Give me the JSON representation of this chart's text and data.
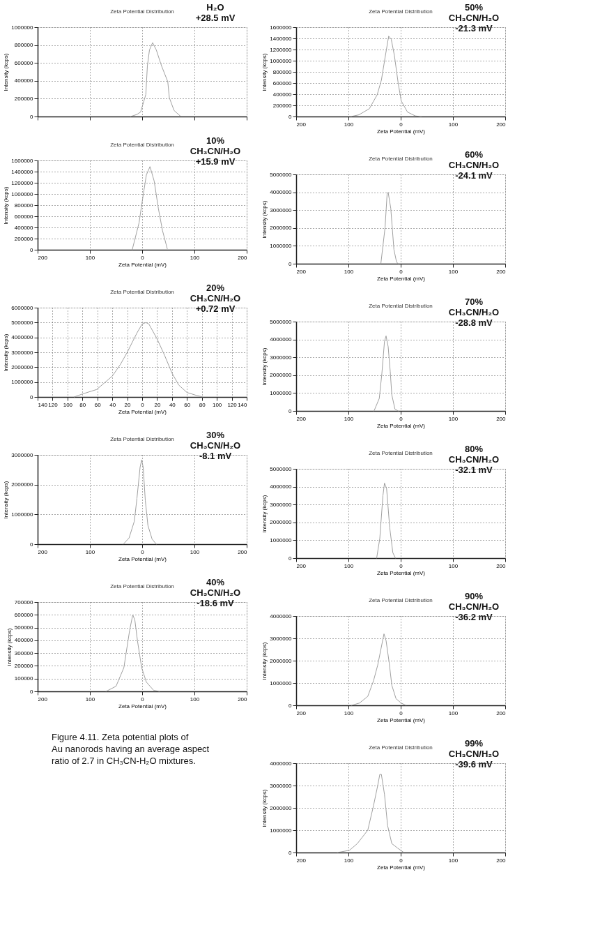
{
  "chart_data": [
    {
      "type": "line",
      "title": "Zeta Potential Distribution",
      "ylabel": "Intensity (kcps)",
      "annotations": [
        "H₂O\n+28.5 mV"
      ],
      "color": "#a0a0a0",
      "grid": true,
      "tick_labels": "y",
      "x": [
        -22,
        -10,
        -3,
        7,
        10,
        14,
        20,
        27,
        37,
        49,
        52,
        61,
        73
      ],
      "values": [
        0,
        23000,
        50000,
        246000,
        568000,
        746000,
        827000,
        746000,
        568000,
        390000,
        210000,
        68000,
        5000
      ],
      "xlim": [
        -200,
        200
      ],
      "xticks": [
        -200,
        -100,
        0,
        100,
        200
      ],
      "ylim": [
        0,
        1000000
      ],
      "yticks": [
        0,
        200000,
        400000,
        600000,
        800000,
        1000000
      ]
    },
    {
      "type": "line",
      "title": "Zeta Potential Distribution",
      "xlabel": "Zeta Potential (mV)",
      "ylabel": "Intensity (kcps)",
      "annotations": [
        "10%\nCH₃CN/H₂O\n+15.9 mV"
      ],
      "color": "#a0a0a0",
      "grid": true,
      "x": [
        -19,
        -6,
        0,
        8,
        15,
        23,
        31,
        39,
        48
      ],
      "values": [
        0,
        480000,
        860000,
        1340000,
        1490000,
        1230000,
        740000,
        340000,
        20000
      ],
      "xlim": [
        -200,
        200
      ],
      "xticks": [
        {
          "value": -200,
          "label": "200"
        },
        {
          "value": -100,
          "label": "100"
        },
        0,
        100,
        200
      ],
      "ylim": [
        0,
        1600000
      ],
      "yticks": [
        0,
        200000,
        400000,
        600000,
        800000,
        1000000,
        1200000,
        1400000,
        1600000
      ]
    },
    {
      "type": "line",
      "title": "Zeta Potential Distribution",
      "xlabel": "Zeta Potential (mV)",
      "ylabel": "Intensity (kcps)",
      "annotations": [
        "20%\nCH₃CN/H₂O\n+0.72 mV"
      ],
      "color": "#a0a0a0",
      "grid": true,
      "x": [
        -91,
        -80,
        -61,
        -40,
        -29,
        -20,
        -7,
        0,
        5,
        9,
        20,
        30,
        40,
        49,
        60,
        73,
        81
      ],
      "values": [
        0,
        200000,
        500000,
        1400000,
        2200000,
        3000000,
        4300000,
        4900000,
        5000000,
        4900000,
        3900000,
        2800000,
        1600000,
        800000,
        300000,
        100000,
        0
      ],
      "xlim": [
        -140,
        140
      ],
      "xticks": [
        {
          "value": -140,
          "label": "140"
        },
        {
          "value": -120,
          "label": "120"
        },
        {
          "value": -100,
          "label": "100"
        },
        {
          "value": -80,
          "label": "80"
        },
        {
          "value": -60,
          "label": "60"
        },
        {
          "value": -40,
          "label": "40"
        },
        {
          "value": -20,
          "label": "20"
        },
        0,
        20,
        40,
        60,
        80,
        100,
        120,
        140
      ],
      "ylim": [
        0,
        6000000
      ],
      "yticks": [
        0,
        1000000,
        2000000,
        3000000,
        4000000,
        5000000,
        6000000
      ]
    },
    {
      "type": "line",
      "title": "Zeta Potential Distribution",
      "xlabel": "Zeta Potential (mV)",
      "ylabel": "Intensity (kcps)",
      "annotations": [
        "30%\nCH₃CN/H₂O\n-8.1 mV"
      ],
      "color": "#a0a0a0",
      "grid": true,
      "x": [
        -36,
        -25,
        -15,
        -10,
        -4,
        -1,
        2,
        6,
        11,
        19,
        27
      ],
      "values": [
        0,
        210000,
        770000,
        1540000,
        2580000,
        2830000,
        2580000,
        1470000,
        630000,
        170000,
        0
      ],
      "xlim": [
        -200,
        200
      ],
      "xticks": [
        {
          "value": -200,
          "label": "200"
        },
        {
          "value": -100,
          "label": "100"
        },
        0,
        100,
        200
      ],
      "ylim": [
        0,
        3000000
      ],
      "yticks": [
        0,
        1000000,
        2000000,
        3000000
      ]
    },
    {
      "type": "line",
      "title": "Zeta Potential Distribution",
      "xlabel": "Zeta Potential (mV)",
      "ylabel": "Intensity (kcps)",
      "annotations": [
        "40%\nCH₃CN/H₂O\n-18.6 mV",
        "Figure 4.11. Zeta potential plots of Au nanorods having an average aspect ratio of 2.7 in CH₃CN-H₂O mixtures."
      ],
      "color": "#a0a0a0",
      "grid": true,
      "x": [
        -69,
        -50,
        -35,
        -24,
        -18,
        -14,
        -9,
        -1,
        8,
        22,
        33
      ],
      "values": [
        0,
        40000,
        186000,
        478000,
        600000,
        559000,
        397000,
        186000,
        73000,
        8000,
        0
      ],
      "xlim": [
        -200,
        200
      ],
      "xticks": [
        {
          "value": -200,
          "label": "200"
        },
        {
          "value": -100,
          "label": "100"
        },
        0,
        100,
        200
      ],
      "ylim": [
        0,
        700000
      ],
      "yticks": [
        0,
        100000,
        200000,
        300000,
        400000,
        500000,
        600000,
        700000
      ]
    },
    {
      "type": "line",
      "title": "Zeta Potential Distribution",
      "xlabel": "Zeta Potential (mV)",
      "ylabel": "Intensity (kcps)",
      "annotations": [
        "50%\nCH₃CN/H₂O\n-21.3 mV"
      ],
      "color": "#a0a0a0",
      "grid": true,
      "x": [
        -95,
        -80,
        -60,
        -45,
        -37,
        -30,
        -23,
        -18,
        -12,
        -5,
        1,
        13,
        28,
        39
      ],
      "values": [
        0,
        30000,
        140000,
        390000,
        650000,
        1050000,
        1440000,
        1380000,
        1090000,
        610000,
        280000,
        80000,
        10000,
        0
      ],
      "xlim": [
        -200,
        200
      ],
      "xticks": [
        {
          "value": -200,
          "label": "200"
        },
        {
          "value": -100,
          "label": "100"
        },
        0,
        100,
        200
      ],
      "ylim": [
        0,
        1600000
      ],
      "yticks": [
        0,
        200000,
        400000,
        600000,
        800000,
        1000000,
        1200000,
        1400000,
        1600000
      ]
    },
    {
      "type": "line",
      "title": "Zeta Potential Distribution",
      "xlabel": "Zeta Potential (mV)",
      "ylabel": "Intensity (kcps)",
      "annotations": [
        "60%\nCH₃CN/H₂O\n-24.1 mV"
      ],
      "color": "#a0a0a0",
      "grid": true,
      "x": [
        -38,
        -30,
        -26,
        -24,
        -19,
        -13,
        -8,
        -5
      ],
      "values": [
        0,
        2000000,
        3900000,
        4000000,
        3100000,
        800000,
        100000,
        0
      ],
      "xlim": [
        -200,
        200
      ],
      "xticks": [
        {
          "value": -200,
          "label": "200"
        },
        {
          "value": -100,
          "label": "100"
        },
        0,
        100,
        200
      ],
      "ylim": [
        0,
        5000000
      ],
      "yticks": [
        0,
        1000000,
        2000000,
        3000000,
        4000000,
        5000000
      ]
    },
    {
      "type": "line",
      "title": "Zeta Potential Distribution",
      "xlabel": "Zeta Potential (mV)",
      "ylabel": "Intensity (kcps)",
      "annotations": [
        "70%\nCH₃CN/H₂O\n-28.8 mV"
      ],
      "color": "#a0a0a0",
      "grid": true,
      "x": [
        -51,
        -41,
        -36,
        -31,
        -28,
        -24,
        -20,
        -17,
        -11,
        -5
      ],
      "values": [
        0,
        700000,
        2100000,
        3900000,
        4200000,
        3600000,
        2200000,
        900000,
        100000,
        0
      ],
      "xlim": [
        -200,
        200
      ],
      "xticks": [
        {
          "value": -200,
          "label": "200"
        },
        {
          "value": -100,
          "label": "100"
        },
        0,
        100,
        200
      ],
      "ylim": [
        0,
        5000000
      ],
      "yticks": [
        0,
        1000000,
        2000000,
        3000000,
        4000000,
        5000000
      ]
    },
    {
      "type": "line",
      "title": "Zeta Potential Distribution",
      "xlabel": "Zeta Potential (mV)",
      "ylabel": "Intensity (kcps)",
      "annotations": [
        "80%\nCH₃CN/H₂O\n-32.1 mV"
      ],
      "color": "#a0a0a0",
      "grid": true,
      "x": [
        -46,
        -40,
        -34,
        -31,
        -27,
        -21,
        -15,
        -10
      ],
      "values": [
        0,
        1100000,
        3500000,
        4200000,
        3900000,
        1700000,
        300000,
        0
      ],
      "xlim": [
        -200,
        200
      ],
      "xticks": [
        {
          "value": -200,
          "label": "200"
        },
        {
          "value": -100,
          "label": "100"
        },
        0,
        100,
        200
      ],
      "ylim": [
        0,
        5000000
      ],
      "yticks": [
        0,
        1000000,
        2000000,
        3000000,
        4000000,
        5000000
      ]
    },
    {
      "type": "line",
      "title": "Zeta Potential Distribution",
      "xlabel": "Zeta Potential (mV)",
      "ylabel": "Intensity (kcps)",
      "annotations": [
        "90%\nCH₃CN/H₂O\n-36.2 mV"
      ],
      "color": "#a0a0a0",
      "grid": true,
      "x": [
        -94,
        -79,
        -63,
        -52,
        -44,
        -38,
        -32,
        -28,
        -22,
        -17,
        -9,
        1,
        10
      ],
      "values": [
        0,
        100000,
        400000,
        1100000,
        1800000,
        2500000,
        3200000,
        2900000,
        1900000,
        900000,
        300000,
        100000,
        0
      ],
      "xlim": [
        -200,
        200
      ],
      "xticks": [
        {
          "value": -200,
          "label": "200"
        },
        {
          "value": -100,
          "label": "100"
        },
        0,
        100,
        200
      ],
      "ylim": [
        0,
        4000000
      ],
      "yticks": [
        0,
        1000000,
        2000000,
        3000000,
        4000000
      ]
    },
    {
      "type": "line",
      "title": "Zeta Potential Distribution",
      "xlabel": "Zeta Potential (mV)",
      "ylabel": "Intensity (kcps)",
      "annotations": [
        "99%\nCH₃CN/H₂O\n-39.6 mV"
      ],
      "color": "#a0a0a0",
      "grid": true,
      "x": [
        -121,
        -98,
        -83,
        -63,
        -52,
        -44,
        -40,
        -37,
        -31,
        -25,
        -17,
        -6,
        6
      ],
      "values": [
        0,
        100000,
        400000,
        1000000,
        2100000,
        3000000,
        3500000,
        3500000,
        2600000,
        1200000,
        400000,
        200000,
        0
      ],
      "xlim": [
        -200,
        200
      ],
      "xticks": [
        {
          "value": -200,
          "label": "200"
        },
        {
          "value": -100,
          "label": "100"
        },
        0,
        100,
        200
      ],
      "ylim": [
        0,
        4000000
      ],
      "yticks": [
        0,
        1000000,
        2000000,
        3000000,
        4000000
      ]
    }
  ]
}
